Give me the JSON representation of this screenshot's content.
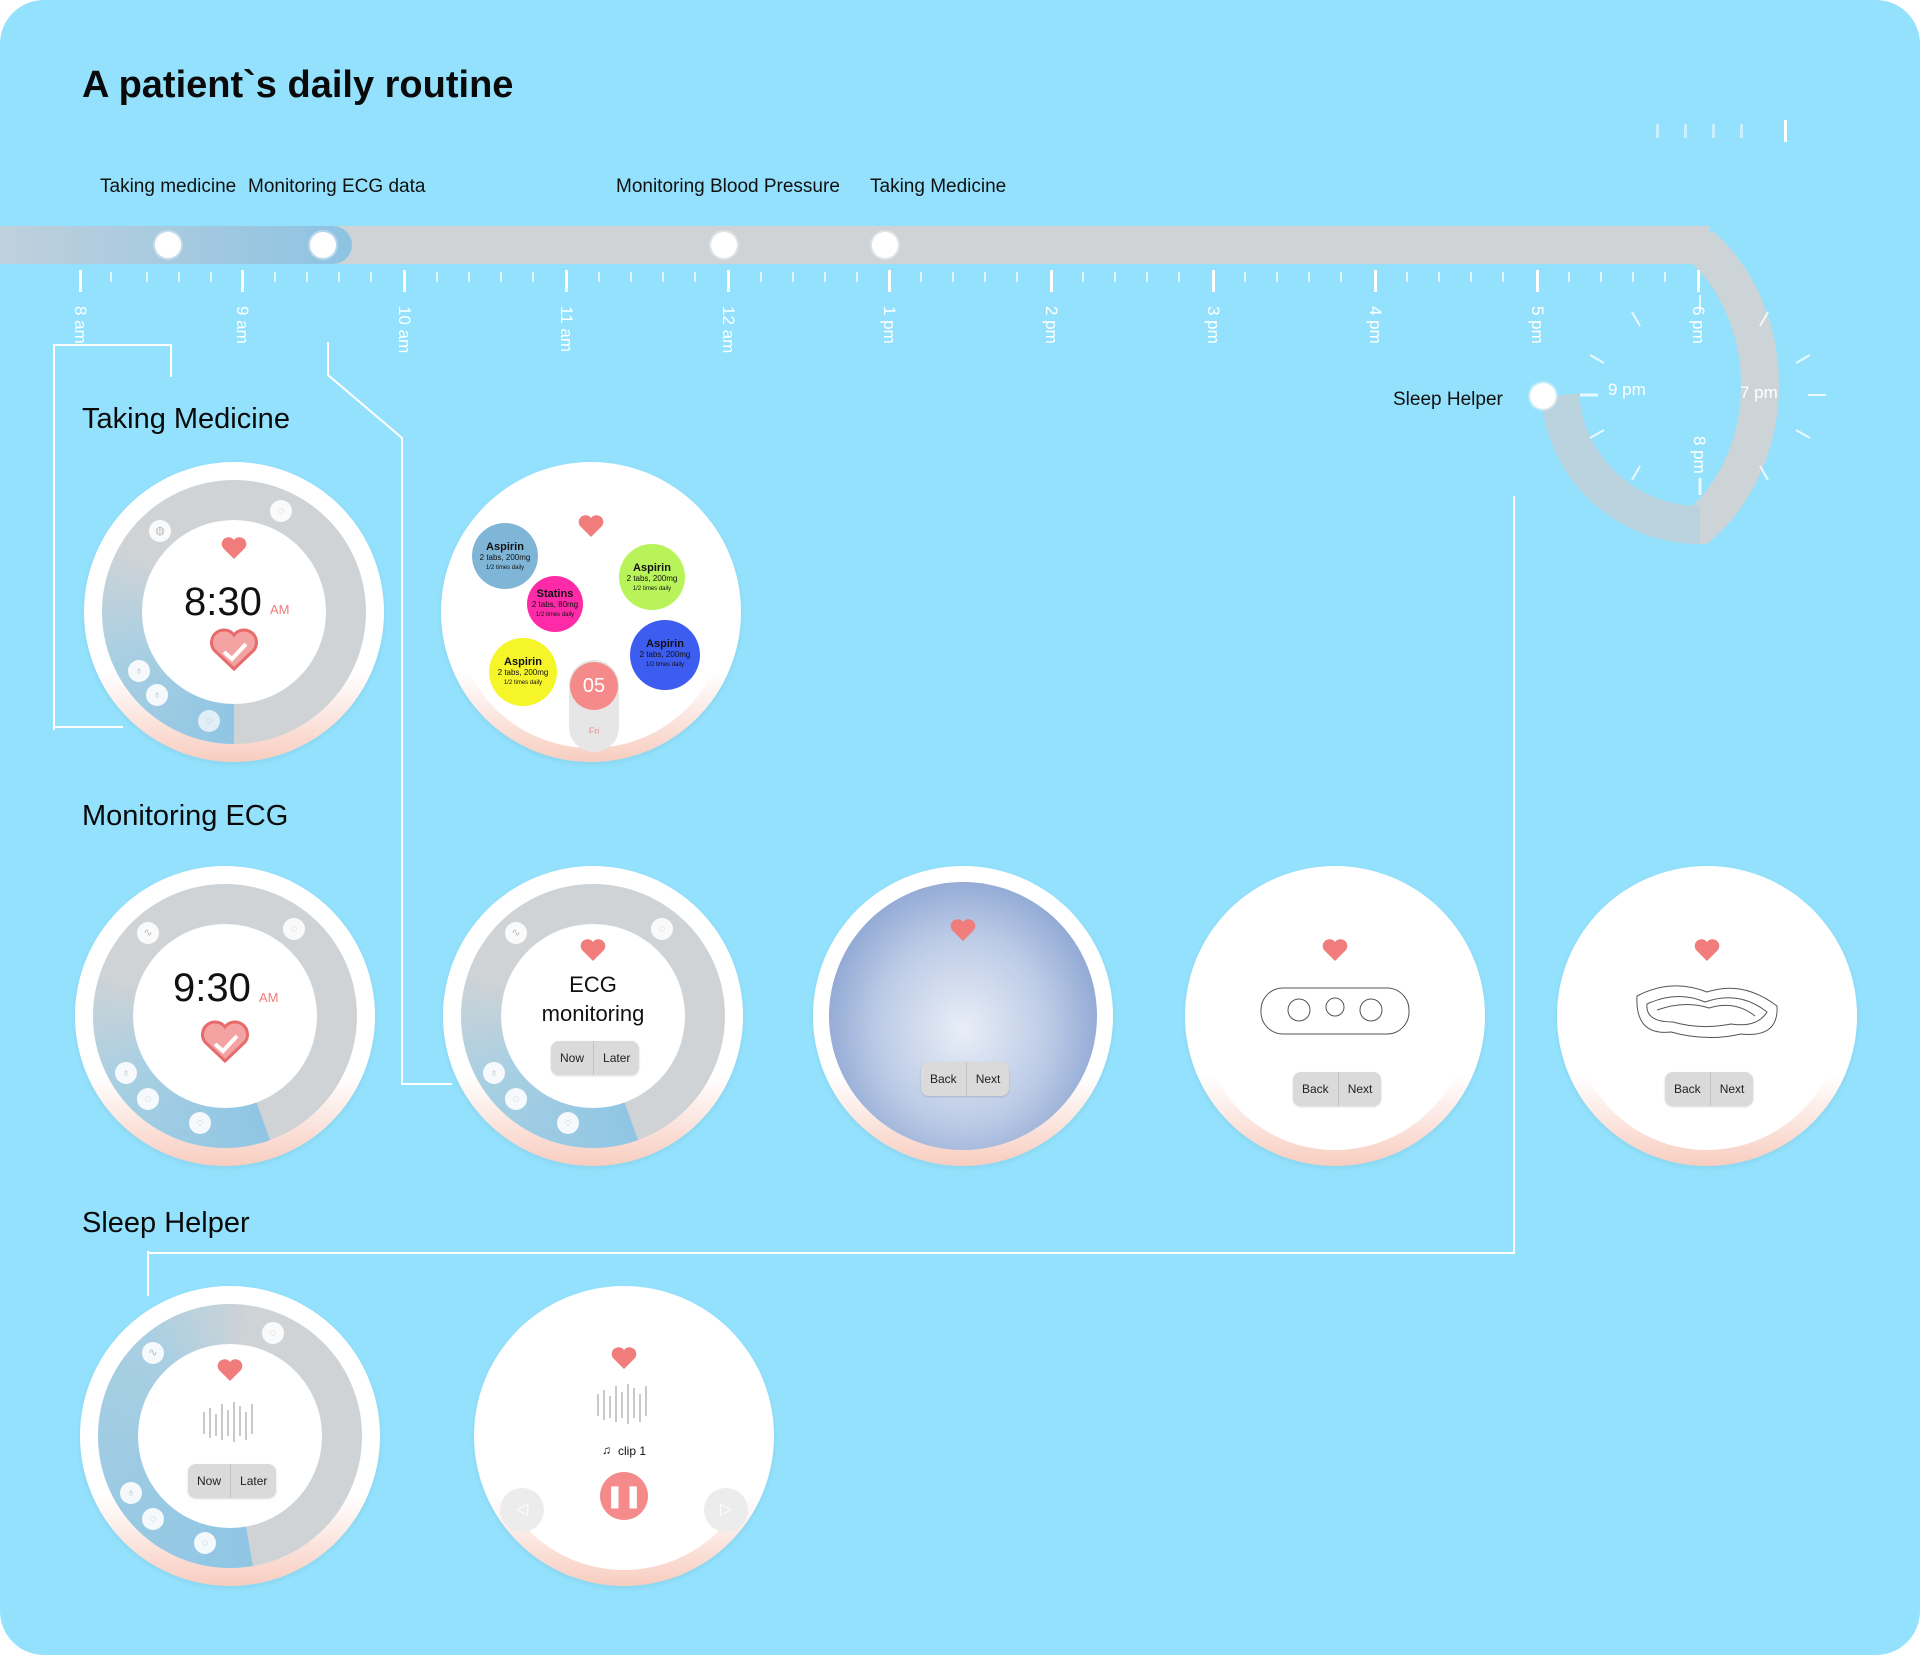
{
  "page": {
    "title": "A patient`s daily routine"
  },
  "timeline": {
    "events": [
      "Taking medicine",
      "Monitoring ECG data",
      "Monitoring Blood Pressure",
      "Taking Medicine"
    ],
    "hours": [
      "8 am",
      "9 am",
      "10 am",
      "11 am",
      "12 am",
      "1 pm",
      "2 pm",
      "3 pm",
      "4 pm",
      "5 pm",
      "6 pm"
    ],
    "evening_hours": [
      "9 pm",
      "7 pm",
      "8 pm"
    ],
    "sleep_label": "Sleep Helper"
  },
  "sections": {
    "medicine": "Taking Medicine",
    "ecg": "Monitoring ECG",
    "sleep": "Sleep Helper"
  },
  "medicine_watch": {
    "time": "8:30",
    "ampm": "AM"
  },
  "medicine_list": {
    "pills": [
      {
        "name": "Aspirin",
        "dose": "2 tabs, 200mg",
        "freq": "1/2 times daily",
        "color": "#7fb6d8"
      },
      {
        "name": "Aspirin",
        "dose": "2 tabs, 200mg",
        "freq": "1/2 times daily",
        "color": "#b8f35a"
      },
      {
        "name": "Statins",
        "dose": "2 tabs, 80mg",
        "freq": "1/2 times daily",
        "color": "#ff2aa8"
      },
      {
        "name": "Aspirin",
        "dose": "2 tabs, 200mg",
        "freq": "1/2 times daily",
        "color": "#3d5cf0"
      },
      {
        "name": "Aspirin",
        "dose": "2 tabs, 200mg",
        "freq": "1/2 times daily",
        "color": "#f5f52a"
      }
    ],
    "date_number": "05",
    "date_day": "Fri"
  },
  "ecg_watch": {
    "time": "9:30",
    "ampm": "AM"
  },
  "ecg_prompt": {
    "line1": "ECG",
    "line2": "monitoring",
    "now": "Now",
    "later": "Later"
  },
  "ecg_steps": {
    "back": "Back",
    "next": "Next"
  },
  "sleep_prompt": {
    "now": "Now",
    "later": "Later"
  },
  "sleep_player": {
    "clip": "clip 1"
  },
  "colors": {
    "background": "#93e1fc",
    "accent": "#f07c7c",
    "track": "#cfd3d6",
    "active_track": "#8fc6e4"
  }
}
